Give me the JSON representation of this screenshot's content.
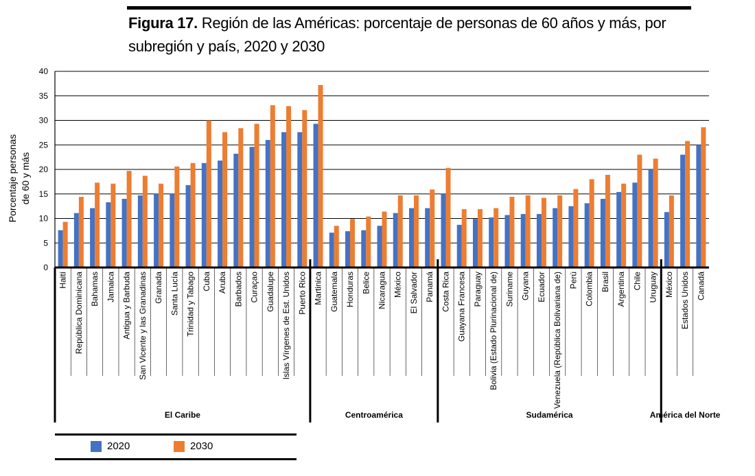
{
  "figure": {
    "label": "Figura 17.",
    "title": "Región de las Américas: porcentaje de personas de 60 años y más, por subregión y país, 2020 y 2030"
  },
  "colors": {
    "s2020": "#4472c4",
    "s2030": "#ed7d31"
  },
  "chart_data": {
    "type": "bar",
    "ylabel": "Porcentaje personas de 60  y más",
    "ylabel_lines": [
      "Porcentaje personas",
      "de 60  y más"
    ],
    "ylim": [
      0,
      40
    ],
    "yticks": [
      0,
      5,
      10,
      15,
      20,
      25,
      30,
      35,
      40
    ],
    "grid": true,
    "legend_position": "bottom-left",
    "categories": [
      "Haití",
      "República Dominicana",
      "Bahamas",
      "Jamaica",
      "Antigua y Barbuda",
      "San Vicente y las Granadinas",
      "Granada",
      "Santa Lucía",
      "Trinidad y Tabago",
      "Cuba",
      "Aruba",
      "Barbados",
      "Curaçao",
      "Guadalupe",
      "Islas Vírgenes de Est. Unidos",
      "Puerto Rico",
      "Martinica",
      "Guatemala",
      "Honduras",
      "Belice",
      "Nicaragua",
      "México",
      "El Salvador",
      "Panamá",
      "Costa Rica",
      "Guayana Francesa",
      "Paraguay",
      "Bolivia (Estado Plurinacional de)",
      "Suriname",
      "Guyana",
      "Ecuador",
      "Venezuela (República Bolivariana de)",
      "Perú",
      "Colombia",
      "Brasil",
      "Argentina",
      "Chile",
      "Uruguay",
      "México",
      "Estados Unidos",
      "Canadá"
    ],
    "groups": [
      {
        "name": "El Caribe",
        "start": 0,
        "count": 16
      },
      {
        "name": "Centroamérica",
        "start": 16,
        "count": 8
      },
      {
        "name": "Sudamérica",
        "start": 24,
        "count": 14
      },
      {
        "name": "América del Norte",
        "start": 38,
        "count": 3
      }
    ],
    "series": [
      {
        "name": "2020",
        "values": [
          7.6,
          11.1,
          12.1,
          13.3,
          14.0,
          14.7,
          15.0,
          15.0,
          16.8,
          21.3,
          21.8,
          23.2,
          24.6,
          26.0,
          27.6,
          27.6,
          29.3,
          7.1,
          7.4,
          7.6,
          8.5,
          11.1,
          12.1,
          12.1,
          15.0,
          8.7,
          9.9,
          10.2,
          10.7,
          10.9,
          10.9,
          12.1,
          12.5,
          13.1,
          14.0,
          15.4,
          17.3,
          20.0,
          11.3,
          23.0,
          25.0
        ]
      },
      {
        "name": "2030",
        "values": [
          9.3,
          14.4,
          17.3,
          17.1,
          19.7,
          18.7,
          17.1,
          20.6,
          21.3,
          30.0,
          27.6,
          28.4,
          29.3,
          33.1,
          32.9,
          32.1,
          37.2,
          8.5,
          9.9,
          10.4,
          11.4,
          14.7,
          14.7,
          15.9,
          20.3,
          11.9,
          11.9,
          12.1,
          14.4,
          14.7,
          14.2,
          14.7,
          16.0,
          18.0,
          18.9,
          17.1,
          23.0,
          22.2,
          14.7,
          25.8,
          28.6
        ]
      }
    ]
  }
}
